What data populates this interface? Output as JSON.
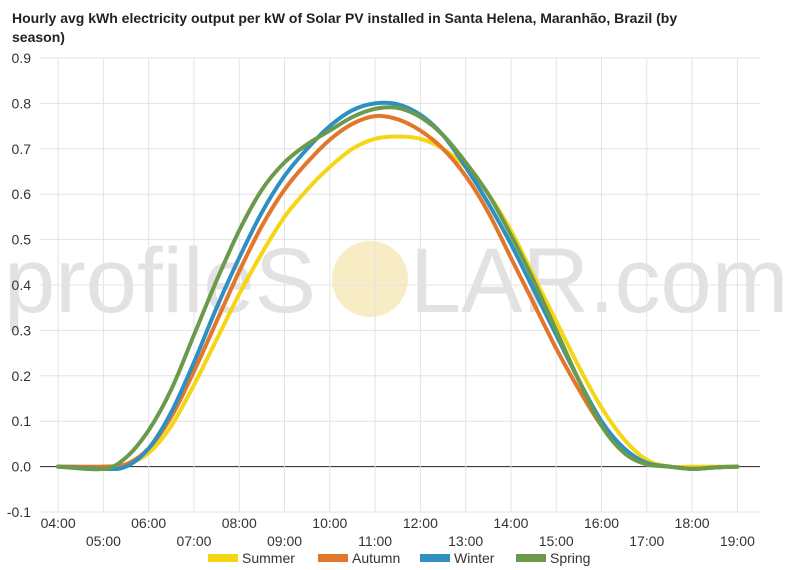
{
  "chart_data": {
    "type": "line",
    "title": "Hourly avg kWh electricity output per kW of Solar PV installed in Santa Helena, Maranhão, Brazil (by season)",
    "xlabel": "",
    "ylabel": "",
    "watermark": {
      "left": "profileS",
      "right": "LAR.com",
      "sun_color": "#f5e6b0"
    },
    "x_ticks_top": [
      "04:00",
      "06:00",
      "08:00",
      "10:00",
      "12:00",
      "14:00",
      "16:00",
      "18:00"
    ],
    "x_ticks_bottom": [
      "05:00",
      "07:00",
      "09:00",
      "11:00",
      "13:00",
      "15:00",
      "17:00",
      "19:00"
    ],
    "y_ticks": [
      "0.9",
      "0.8",
      "0.7",
      "0.6",
      "0.5",
      "0.4",
      "0.3",
      "0.2",
      "0.1",
      "0.0",
      "-0.1"
    ],
    "ylim": [
      -0.1,
      0.9
    ],
    "xlim": [
      3.6,
      19.5
    ],
    "grid": true,
    "legend_position": "bottom",
    "series": [
      {
        "name": "Summer",
        "color": "#f5d614",
        "points": [
          [
            4,
            0
          ],
          [
            5,
            0
          ],
          [
            5.5,
            0.005
          ],
          [
            6,
            0.03
          ],
          [
            6.5,
            0.09
          ],
          [
            7,
            0.18
          ],
          [
            7.5,
            0.28
          ],
          [
            8,
            0.38
          ],
          [
            8.5,
            0.47
          ],
          [
            9,
            0.55
          ],
          [
            9.5,
            0.61
          ],
          [
            10,
            0.66
          ],
          [
            10.5,
            0.7
          ],
          [
            11,
            0.722
          ],
          [
            11.5,
            0.727
          ],
          [
            12,
            0.722
          ],
          [
            12.5,
            0.7
          ],
          [
            13,
            0.66
          ],
          [
            13.5,
            0.6
          ],
          [
            14,
            0.52
          ],
          [
            14.5,
            0.42
          ],
          [
            15,
            0.32
          ],
          [
            15.5,
            0.22
          ],
          [
            16,
            0.13
          ],
          [
            16.5,
            0.06
          ],
          [
            17,
            0.015
          ],
          [
            17.5,
            0
          ],
          [
            18,
            0
          ],
          [
            18.5,
            0
          ],
          [
            19,
            0
          ]
        ]
      },
      {
        "name": "Autumn",
        "color": "#e2772b",
        "points": [
          [
            4,
            0
          ],
          [
            5,
            0
          ],
          [
            5.5,
            0.005
          ],
          [
            6,
            0.04
          ],
          [
            6.5,
            0.11
          ],
          [
            7,
            0.21
          ],
          [
            7.5,
            0.32
          ],
          [
            8,
            0.43
          ],
          [
            8.5,
            0.53
          ],
          [
            9,
            0.61
          ],
          [
            9.5,
            0.67
          ],
          [
            10,
            0.72
          ],
          [
            10.5,
            0.755
          ],
          [
            11,
            0.772
          ],
          [
            11.5,
            0.765
          ],
          [
            12,
            0.74
          ],
          [
            12.5,
            0.7
          ],
          [
            13,
            0.64
          ],
          [
            13.5,
            0.56
          ],
          [
            14,
            0.46
          ],
          [
            14.5,
            0.36
          ],
          [
            15,
            0.26
          ],
          [
            15.5,
            0.17
          ],
          [
            16,
            0.09
          ],
          [
            16.5,
            0.035
          ],
          [
            17,
            0.008
          ],
          [
            17.5,
            0
          ],
          [
            18,
            -0.005
          ],
          [
            18.5,
            -0.002
          ],
          [
            19,
            0
          ]
        ]
      },
      {
        "name": "Winter",
        "color": "#2e90c2",
        "points": [
          [
            4,
            0
          ],
          [
            5,
            -0.005
          ],
          [
            5.5,
            0
          ],
          [
            6,
            0.04
          ],
          [
            6.5,
            0.12
          ],
          [
            7,
            0.23
          ],
          [
            7.5,
            0.35
          ],
          [
            8,
            0.46
          ],
          [
            8.5,
            0.56
          ],
          [
            9,
            0.64
          ],
          [
            9.5,
            0.7
          ],
          [
            10,
            0.75
          ],
          [
            10.5,
            0.785
          ],
          [
            11,
            0.8
          ],
          [
            11.5,
            0.798
          ],
          [
            12,
            0.775
          ],
          [
            12.5,
            0.73
          ],
          [
            13,
            0.66
          ],
          [
            13.5,
            0.58
          ],
          [
            14,
            0.49
          ],
          [
            14.5,
            0.39
          ],
          [
            15,
            0.29
          ],
          [
            15.5,
            0.19
          ],
          [
            16,
            0.1
          ],
          [
            16.5,
            0.04
          ],
          [
            17,
            0.008
          ],
          [
            17.5,
            0
          ],
          [
            18,
            -0.005
          ],
          [
            18.5,
            -0.002
          ],
          [
            19,
            0
          ]
        ]
      },
      {
        "name": "Spring",
        "color": "#6b9a4c",
        "points": [
          [
            4,
            0
          ],
          [
            5,
            -0.005
          ],
          [
            5.5,
            0.02
          ],
          [
            6,
            0.08
          ],
          [
            6.5,
            0.17
          ],
          [
            7,
            0.29
          ],
          [
            7.5,
            0.41
          ],
          [
            8,
            0.52
          ],
          [
            8.5,
            0.61
          ],
          [
            9,
            0.67
          ],
          [
            9.5,
            0.71
          ],
          [
            10,
            0.74
          ],
          [
            10.5,
            0.77
          ],
          [
            11,
            0.788
          ],
          [
            11.5,
            0.79
          ],
          [
            12,
            0.77
          ],
          [
            12.5,
            0.73
          ],
          [
            13,
            0.67
          ],
          [
            13.5,
            0.6
          ],
          [
            14,
            0.51
          ],
          [
            14.5,
            0.41
          ],
          [
            15,
            0.3
          ],
          [
            15.5,
            0.19
          ],
          [
            16,
            0.09
          ],
          [
            16.5,
            0.03
          ],
          [
            17,
            0.005
          ],
          [
            17.5,
            0
          ],
          [
            18,
            -0.005
          ],
          [
            18.5,
            -0.002
          ],
          [
            19,
            0
          ]
        ]
      }
    ]
  }
}
